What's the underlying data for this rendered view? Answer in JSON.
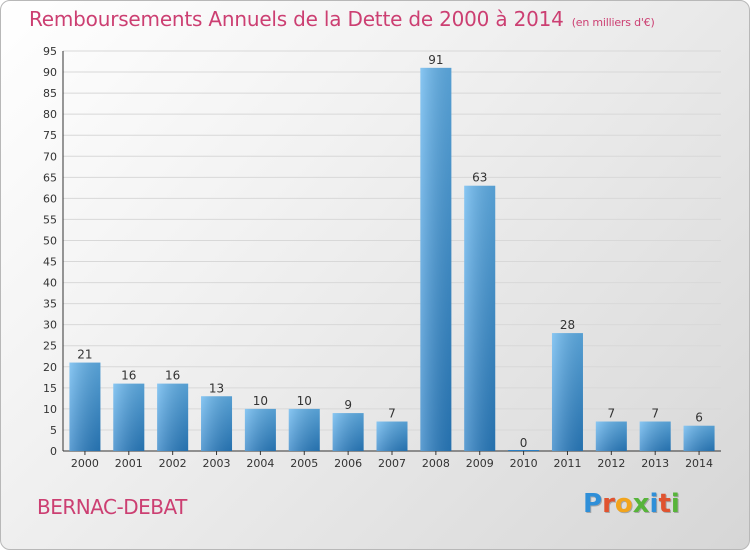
{
  "title": "Remboursements Annuels de la Dette de 2000 à 2014",
  "unit": "(en milliers d'€)",
  "commune": "BERNAC-DEBAT",
  "brand": "Proxiti",
  "colors": {
    "title": "#cc3f72",
    "bar_light": "#62b4ee",
    "bar_dark": "#2a7fc4",
    "logo": [
      "#2f8fd8",
      "#e0532f",
      "#f2a41c",
      "#57b43a",
      "#2f8fd8",
      "#e0532f",
      "#57b43a"
    ]
  },
  "chart_data": {
    "type": "bar",
    "title": "Remboursements Annuels de la Dette de 2000 à 2014",
    "categories": [
      "2000",
      "2001",
      "2002",
      "2003",
      "2004",
      "2005",
      "2006",
      "2007",
      "2008",
      "2009",
      "2010",
      "2011",
      "2012",
      "2013",
      "2014"
    ],
    "values": [
      21,
      16,
      16,
      13,
      10,
      10,
      9,
      7,
      91,
      63,
      0,
      28,
      7,
      7,
      6
    ],
    "ylim": [
      0,
      95
    ],
    "ytick_step": 5,
    "grid": true
  }
}
